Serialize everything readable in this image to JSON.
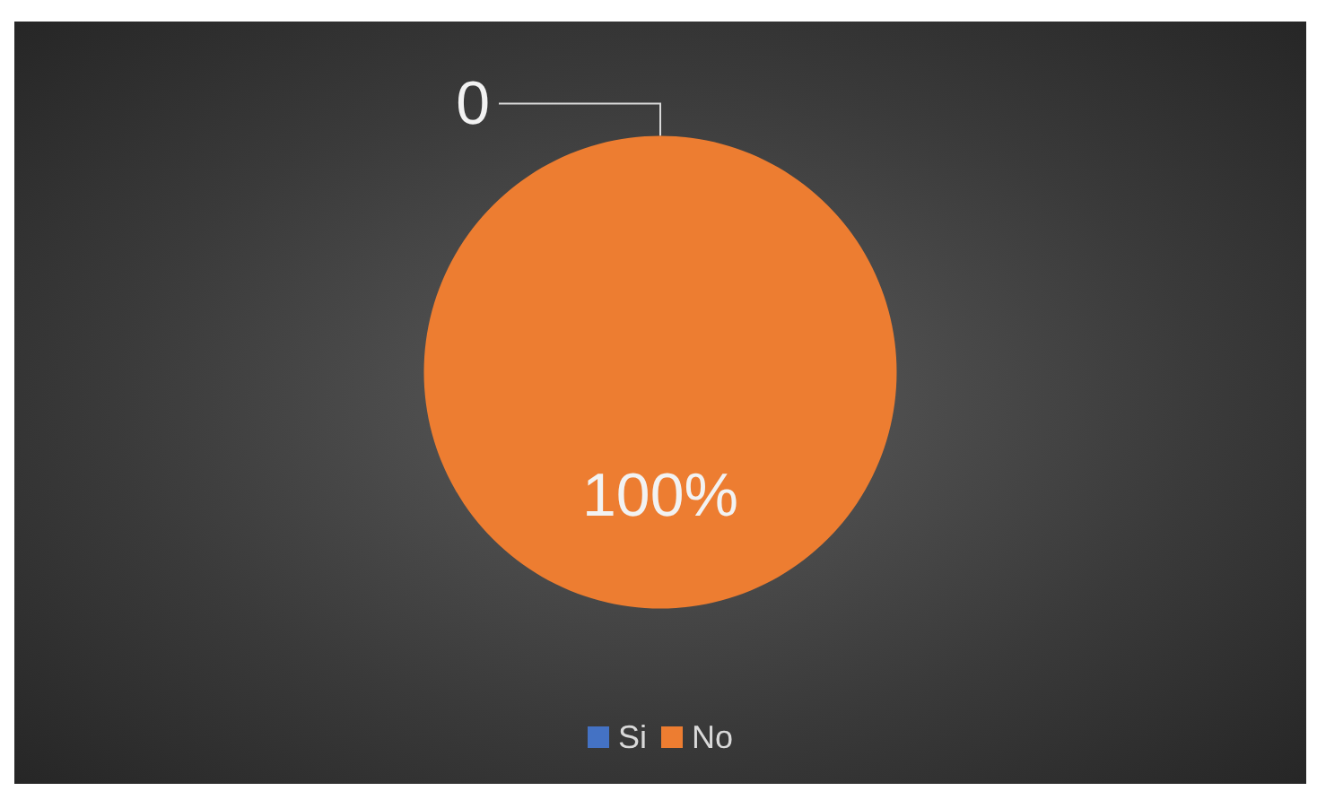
{
  "chart_data": {
    "type": "pie",
    "categories": [
      "Si",
      "No"
    ],
    "values": [
      0,
      100
    ],
    "colors": [
      "#4472c4",
      "#ed7d31"
    ],
    "value_labels": [
      "0",
      "100%"
    ],
    "legend": "bottom"
  }
}
